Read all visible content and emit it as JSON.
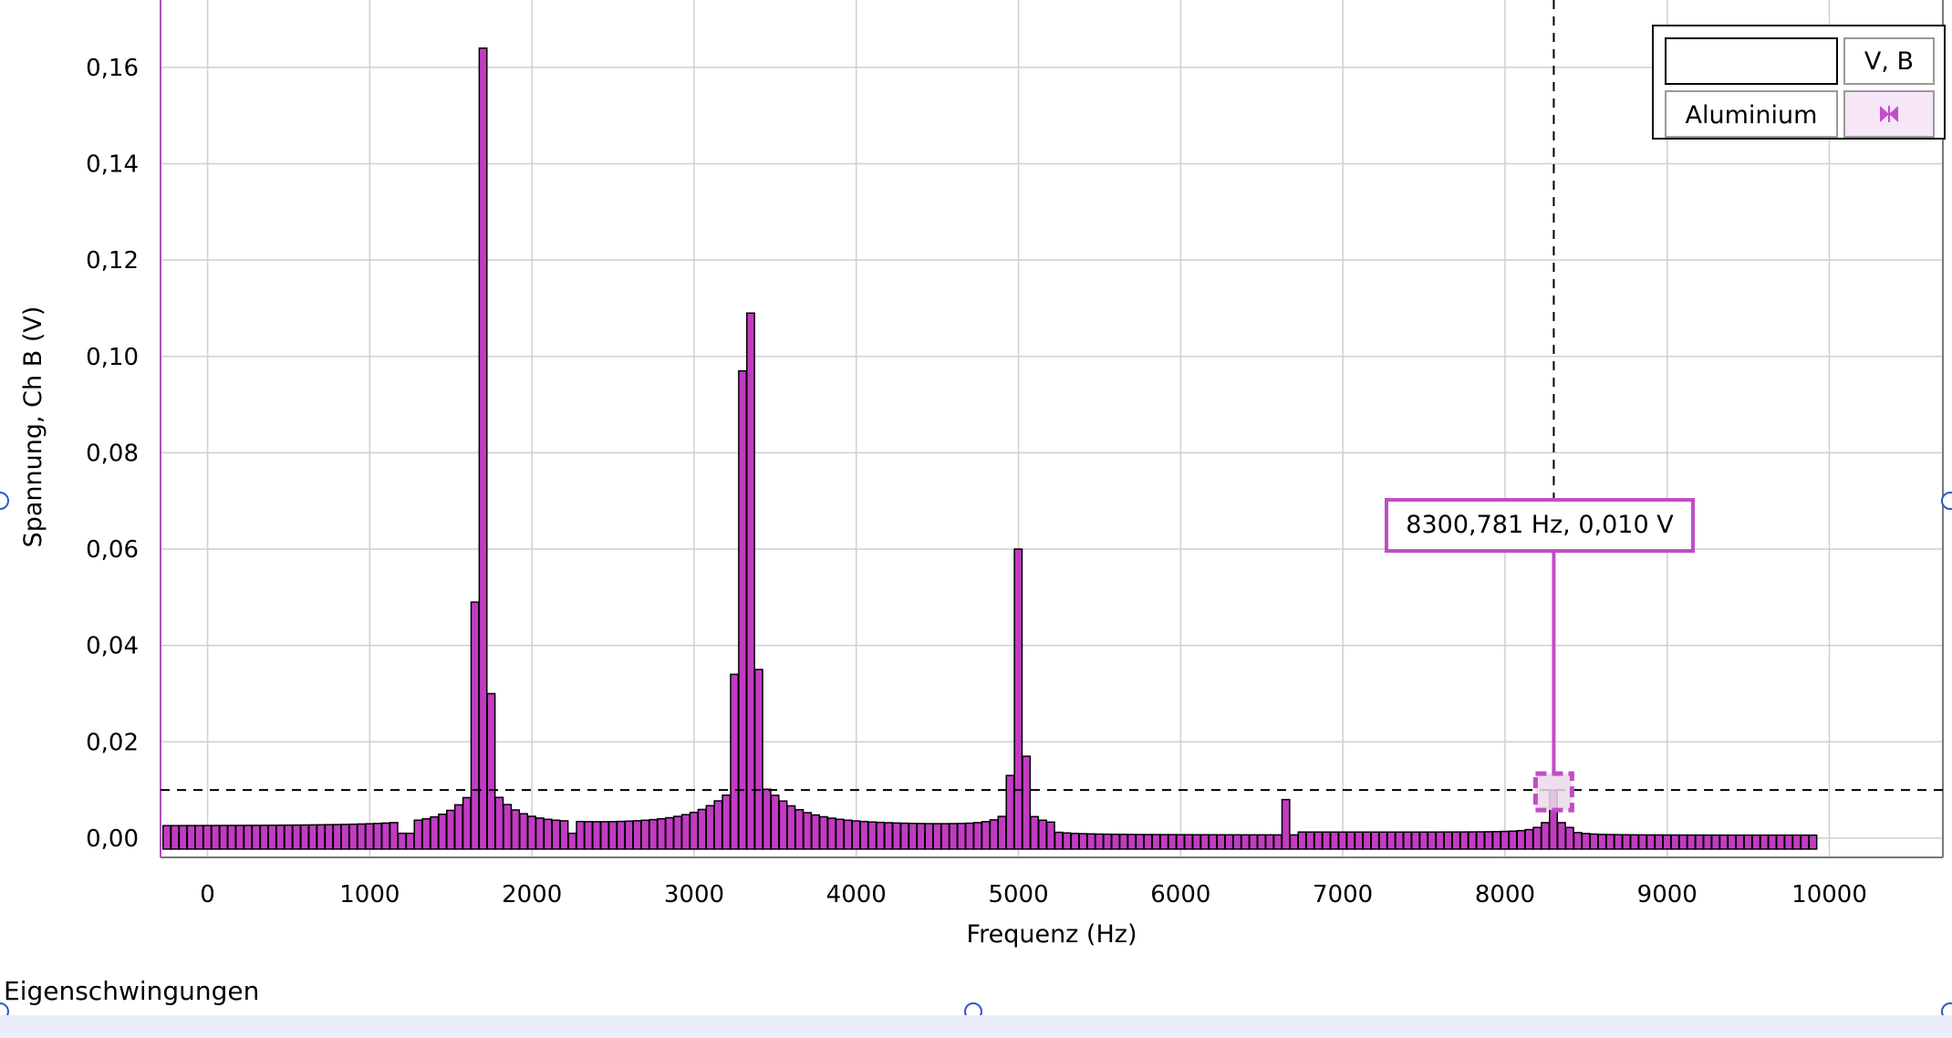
{
  "caption": "Eigenschwingungen",
  "legend": {
    "header_left": "",
    "header_right": "V, B",
    "series_label": "Aluminium",
    "series_icon": "bowtie-icon"
  },
  "readout": {
    "text": "8300,781 Hz, 0,010 V",
    "x": 8300.781,
    "y": 0.01
  },
  "colors": {
    "bar_fill": "#c23bc2",
    "bar_stroke": "#000000",
    "accent": "#c24dc7",
    "grid": "#cfcfcf"
  },
  "chart_data": {
    "type": "bar",
    "xlabel": "Frequenz (Hz)",
    "ylabel": "Spannung, Ch B (V)",
    "xlim": [
      -290,
      10700
    ],
    "ylim": [
      -0.004,
      0.174
    ],
    "xticks": [
      "0",
      "1000",
      "2000",
      "3000",
      "4000",
      "5000",
      "6000",
      "7000",
      "8000",
      "9000",
      "10000"
    ],
    "yticks": [
      "0,00",
      "0,02",
      "0,04",
      "0,06",
      "0,08",
      "0,10",
      "0,12",
      "0,14",
      "0,16"
    ],
    "grid": true,
    "cursor": {
      "x": 8300.781,
      "y": 0.01
    },
    "bin_width": 50,
    "peaks": [
      {
        "x": 1650,
        "y": 0.049
      },
      {
        "x": 1700,
        "y": 0.164
      },
      {
        "x": 1750,
        "y": 0.03
      },
      {
        "x": 3250,
        "y": 0.034
      },
      {
        "x": 3300,
        "y": 0.097
      },
      {
        "x": 3350,
        "y": 0.109
      },
      {
        "x": 3400,
        "y": 0.035
      },
      {
        "x": 4950,
        "y": 0.013
      },
      {
        "x": 5000,
        "y": 0.06
      },
      {
        "x": 5050,
        "y": 0.017
      },
      {
        "x": 6650,
        "y": 0.008
      },
      {
        "x": 8300,
        "y": 0.01
      }
    ]
  }
}
